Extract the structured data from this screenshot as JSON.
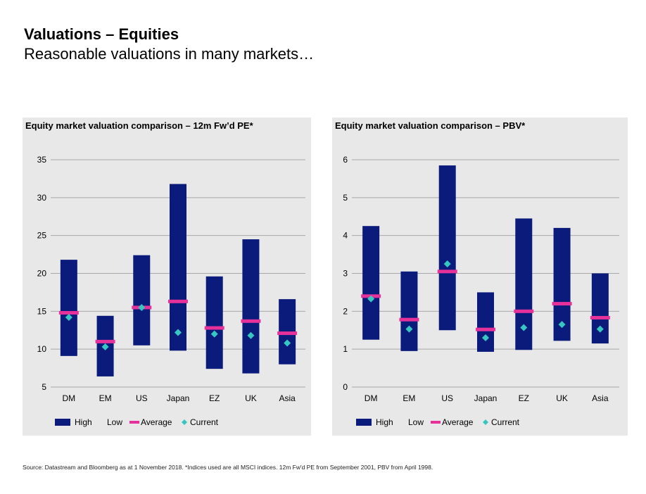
{
  "header": {
    "title": "Valuations – Equities",
    "subtitle": "Reasonable valuations in many markets…"
  },
  "colors": {
    "range_bar": "#0b1b7c",
    "average": "#e6319a",
    "current": "#37c7c0",
    "panel_background": "#e8e8e8",
    "gridline": "#a8a8a8"
  },
  "legend": {
    "high": "High",
    "low": "Low",
    "average": "Average",
    "current": "Current"
  },
  "chart_data": [
    {
      "type": "bar",
      "title": "Equity market valuation comparison – 12m Fw’d PE*",
      "categories": [
        "DM",
        "EM",
        "US",
        "Japan",
        "EZ",
        "UK",
        "Asia"
      ],
      "ylim": [
        5,
        35
      ],
      "yticks": [
        "5",
        "10",
        "15",
        "20",
        "25",
        "30",
        "35"
      ],
      "grid": true,
      "legend_position": "bottom",
      "series": [
        {
          "name": "High",
          "values": [
            21.8,
            14.4,
            22.4,
            31.8,
            19.6,
            24.5,
            16.6
          ]
        },
        {
          "name": "Low",
          "values": [
            9.1,
            6.4,
            10.5,
            9.8,
            7.4,
            6.8,
            8.0
          ]
        },
        {
          "name": "Average",
          "values": [
            14.8,
            11.0,
            15.5,
            16.3,
            12.8,
            13.7,
            12.1
          ]
        },
        {
          "name": "Current",
          "values": [
            14.2,
            10.3,
            15.5,
            12.2,
            12.0,
            11.8,
            10.8
          ]
        }
      ]
    },
    {
      "type": "bar",
      "title": "Equity market valuation comparison – PBV*",
      "categories": [
        "DM",
        "EM",
        "US",
        "Japan",
        "EZ",
        "UK",
        "Asia"
      ],
      "ylim": [
        0,
        6
      ],
      "yticks": [
        "0",
        "1",
        "2",
        "3",
        "4",
        "5",
        "6"
      ],
      "grid": true,
      "legend_position": "bottom",
      "series": [
        {
          "name": "High",
          "values": [
            4.25,
            3.05,
            5.85,
            2.5,
            4.45,
            4.2,
            3.0
          ]
        },
        {
          "name": "Low",
          "values": [
            1.25,
            0.95,
            1.5,
            0.93,
            0.98,
            1.22,
            1.15
          ]
        },
        {
          "name": "Average",
          "values": [
            2.4,
            1.78,
            3.05,
            1.52,
            2.0,
            2.2,
            1.83
          ]
        },
        {
          "name": "Current",
          "values": [
            2.33,
            1.53,
            3.25,
            1.3,
            1.57,
            1.65,
            1.53
          ]
        }
      ]
    }
  ],
  "footer": {
    "source": "Source: Datastream and Bloomberg as at 1 November 2018. *Indices used are all MSCI indices. 12m Fw'd PE from September 2001, PBV from April 1998."
  }
}
